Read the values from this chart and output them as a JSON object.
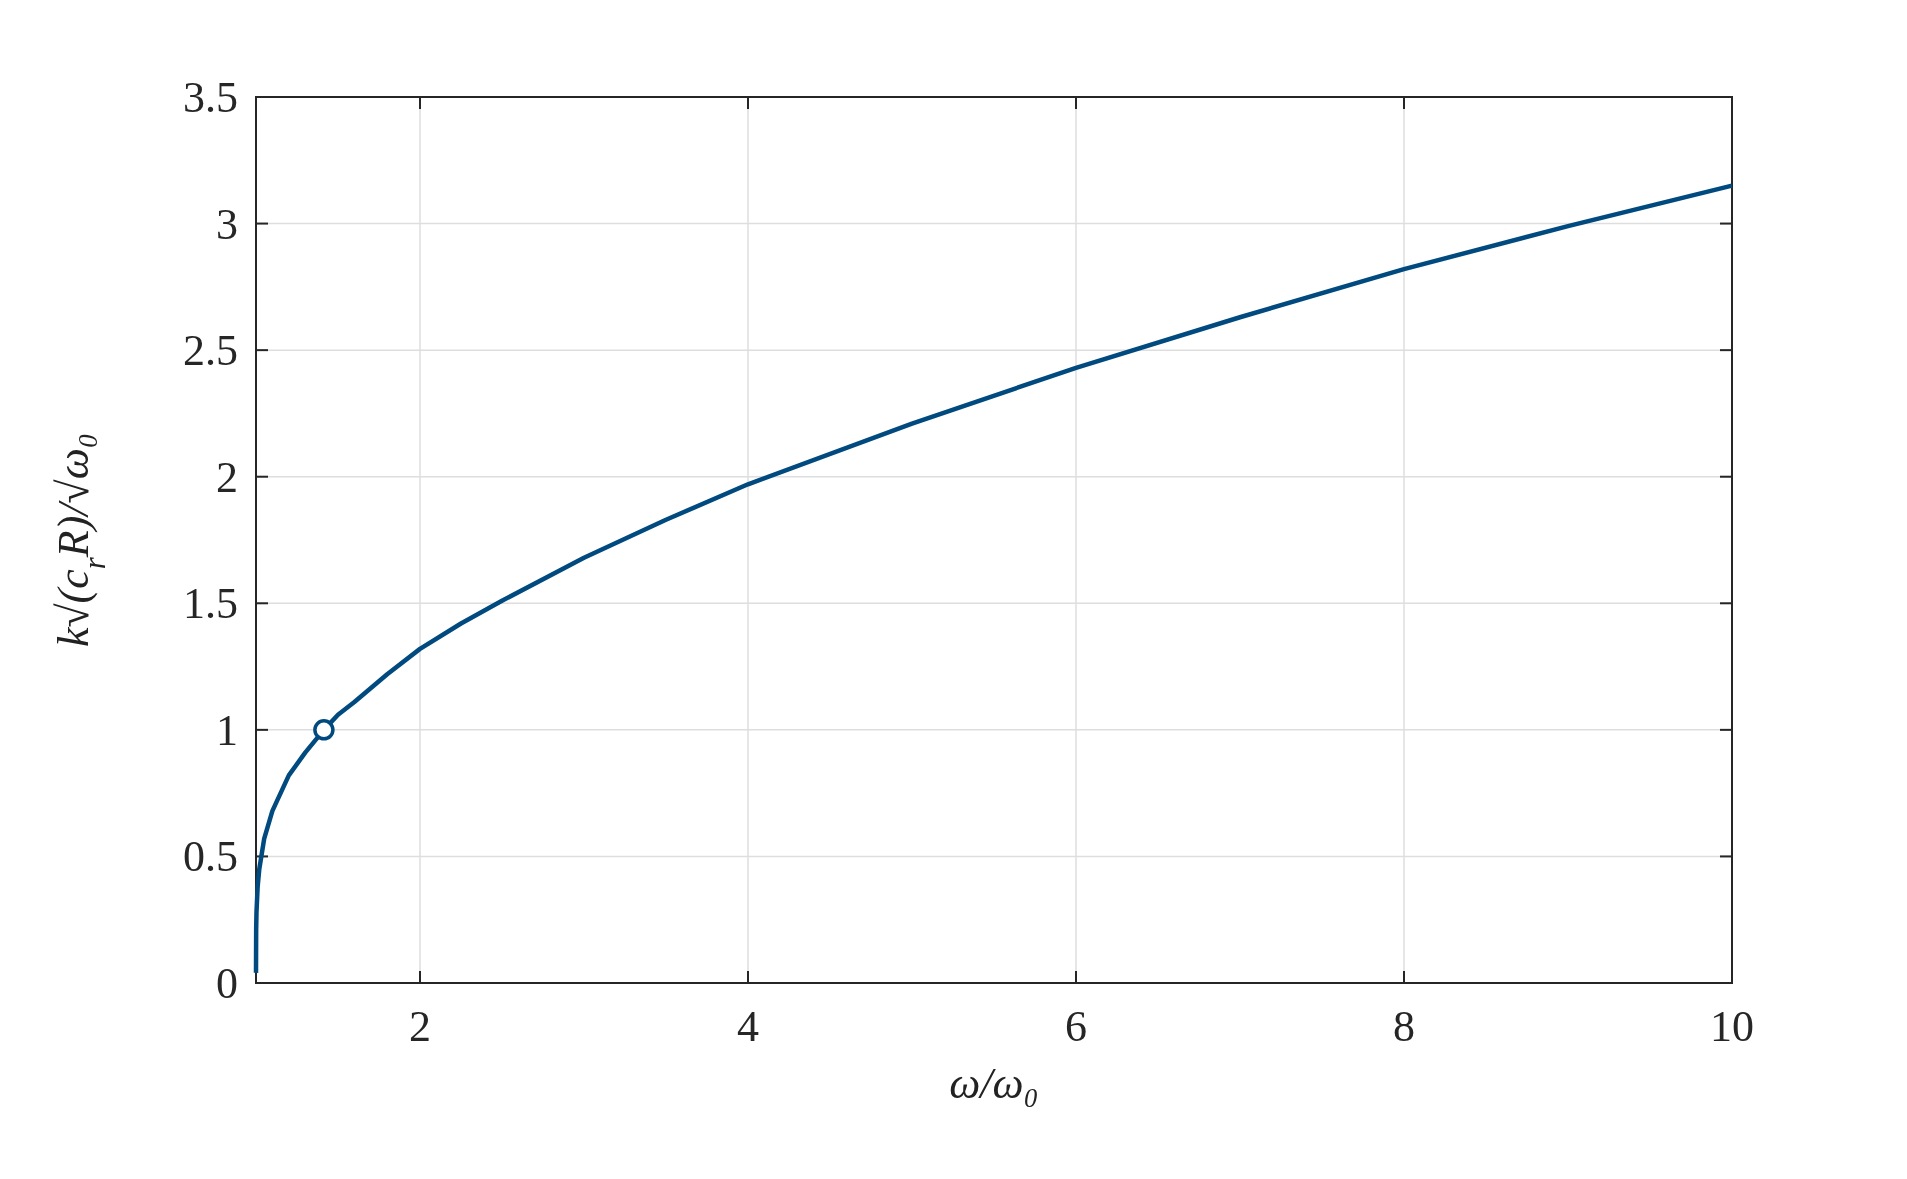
{
  "chart_data": {
    "type": "line",
    "xlabel": "ω/ω₀",
    "ylabel": "k√(c$_{r}$R)/√ω₀",
    "xlim": [
      1,
      10
    ],
    "xticks": [
      2,
      4,
      6,
      8,
      10
    ],
    "ylim": [
      0,
      3.5
    ],
    "yticks": [
      0,
      0.5,
      1,
      1.5,
      2,
      2.5,
      3,
      3.5
    ],
    "grid": true,
    "series": [
      {
        "color": "#004a7f",
        "marker": "none",
        "line_style": "solid",
        "x": [
          1,
          1.001,
          1.003,
          1.01,
          1.02,
          1.05,
          1.1,
          1.15,
          1.2,
          1.3,
          1.414,
          1.5,
          1.6,
          1.8,
          2,
          2.25,
          2.5,
          3,
          3.5,
          4,
          5,
          6,
          7,
          8,
          9,
          10
        ],
        "values": [
          0.04,
          0.21,
          0.28,
          0.38,
          0.45,
          0.57,
          0.68,
          0.75,
          0.82,
          0.91,
          1,
          1.06,
          1.11,
          1.22,
          1.32,
          1.42,
          1.51,
          1.68,
          1.83,
          1.97,
          2.21,
          2.43,
          2.63,
          2.82,
          2.99,
          3.15
        ]
      },
      {
        "type": "scatter",
        "color": "#004a7f",
        "marker": "circle",
        "x": [
          1.414
        ],
        "values": [
          1
        ]
      }
    ]
  }
}
